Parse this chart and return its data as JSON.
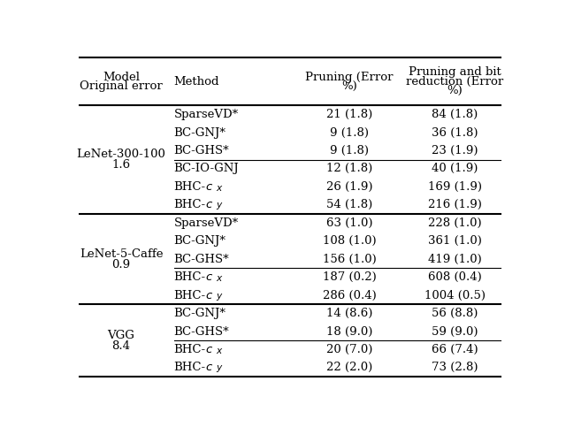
{
  "col_headers": [
    [
      "Model",
      "Original error"
    ],
    [
      "Method"
    ],
    [
      "Pruning (Error",
      "%)"
    ],
    [
      "Pruning and bit",
      "reduction (Error",
      "%)"
    ]
  ],
  "rows": [
    {
      "model": "LeNet-300-100",
      "model2": "1.6",
      "method": "SparseVD*",
      "pruning": "21 (1.8)",
      "pruning_bit": "84 (1.8)",
      "line_above": false,
      "line_above_full": false
    },
    {
      "model": "",
      "model2": "",
      "method": "BC-GNJ*",
      "pruning": "9 (1.8)",
      "pruning_bit": "36 (1.8)",
      "line_above": false,
      "line_above_full": false
    },
    {
      "model": "",
      "model2": "",
      "method": "BC-GHS*",
      "pruning": "9 (1.8)",
      "pruning_bit": "23 (1.9)",
      "line_above": false,
      "line_above_full": false
    },
    {
      "model": "",
      "model2": "",
      "method": "BC-IO-GNJ",
      "pruning": "12 (1.8)",
      "pruning_bit": "40 (1.9)",
      "line_above": true,
      "line_above_full": true
    },
    {
      "model": "",
      "model2": "",
      "method": "BHC-c_x",
      "pruning": "26 (1.9)",
      "pruning_bit": "169 (1.9)",
      "line_above": false,
      "line_above_full": false
    },
    {
      "model": "",
      "model2": "",
      "method": "BHC-c_y",
      "pruning": "54 (1.8)",
      "pruning_bit": "216 (1.9)",
      "line_above": false,
      "line_above_full": false
    },
    {
      "model": "LeNet-5-Caffe",
      "model2": "0.9",
      "method": "SparseVD*",
      "pruning": "63 (1.0)",
      "pruning_bit": "228 (1.0)",
      "line_above": false,
      "line_above_full": false
    },
    {
      "model": "",
      "model2": "",
      "method": "BC-GNJ*",
      "pruning": "108 (1.0)",
      "pruning_bit": "361 (1.0)",
      "line_above": false,
      "line_above_full": false
    },
    {
      "model": "",
      "model2": "",
      "method": "BC-GHS*",
      "pruning": "156 (1.0)",
      "pruning_bit": "419 (1.0)",
      "line_above": false,
      "line_above_full": false
    },
    {
      "model": "",
      "model2": "",
      "method": "BHC-c_x",
      "pruning": "187 (0.2)",
      "pruning_bit": "608 (0.4)",
      "line_above": true,
      "line_above_full": true
    },
    {
      "model": "",
      "model2": "",
      "method": "BHC-c_y",
      "pruning": "286 (0.4)",
      "pruning_bit": "1004 (0.5)",
      "line_above": false,
      "line_above_full": false
    },
    {
      "model": "VGG",
      "model2": "8.4",
      "method": "BC-GNJ*",
      "pruning": "14 (8.6)",
      "pruning_bit": "56 (8.8)",
      "line_above": false,
      "line_above_full": false
    },
    {
      "model": "",
      "model2": "",
      "method": "BC-GHS*",
      "pruning": "18 (9.0)",
      "pruning_bit": "59 (9.0)",
      "line_above": false,
      "line_above_full": false
    },
    {
      "model": "",
      "model2": "",
      "method": "BHC-c_x",
      "pruning": "20 (7.0)",
      "pruning_bit": "66 (7.4)",
      "line_above": true,
      "line_above_full": true
    },
    {
      "model": "",
      "model2": "",
      "method": "BHC-c_y",
      "pruning": "22 (2.0)",
      "pruning_bit": "73 (2.8)",
      "line_above": false,
      "line_above_full": false
    }
  ],
  "thick_lines_before_rows": [
    0,
    6,
    11
  ],
  "background_color": "#ffffff",
  "font_size": 9.5,
  "font_family": "DejaVu Serif"
}
